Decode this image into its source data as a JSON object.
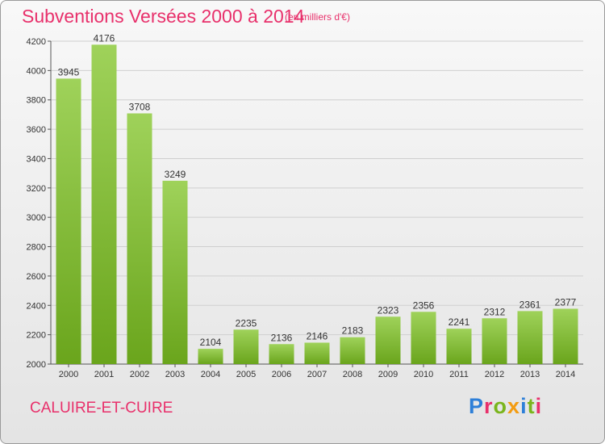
{
  "header": {
    "title": "Subventions Versées 2000 à 2014",
    "unit": "(en milliers d'€)"
  },
  "footer": {
    "commune": "CALUIRE-ET-CUIRE",
    "brand": "Proxiti",
    "brand_colors": [
      "#2d7fd8",
      "#e8306b",
      "#7ab51d",
      "#f39c12",
      "#2d7fd8",
      "#7ab51d",
      "#e8306b"
    ]
  },
  "colors": {
    "title": "#e8306b",
    "bar_light": "#9fd25a",
    "bar_dark": "#6aa51c",
    "axis": "#555555",
    "grid": "#cfcfcf"
  },
  "chart_data": {
    "type": "bar",
    "categories": [
      "2000",
      "2001",
      "2002",
      "2003",
      "2004",
      "2005",
      "2006",
      "2007",
      "2008",
      "2009",
      "2010",
      "2011",
      "2012",
      "2013",
      "2014"
    ],
    "values": [
      3945,
      4176,
      3708,
      3249,
      2104,
      2235,
      2136,
      2146,
      2183,
      2323,
      2356,
      2241,
      2312,
      2361,
      2377
    ],
    "ylim": [
      2000,
      4200
    ],
    "yticks": [
      2000,
      2200,
      2400,
      2600,
      2800,
      3000,
      3200,
      3400,
      3600,
      3800,
      4000,
      4200
    ],
    "grid": true,
    "legend": "none"
  }
}
